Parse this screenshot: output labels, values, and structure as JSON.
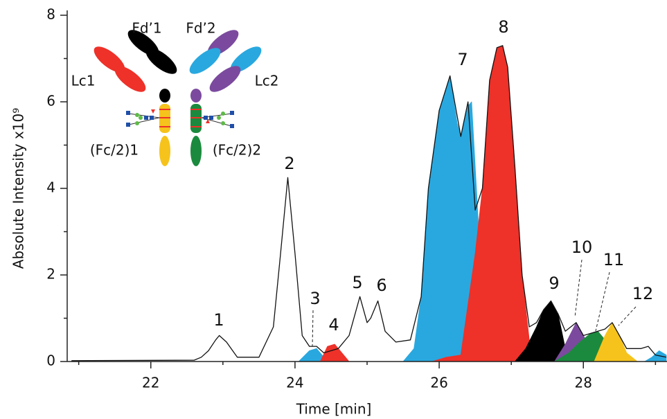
{
  "chart_data": {
    "type": "area",
    "xlabel": "Time [min]",
    "ylabel": "Absolute Intensity x10⁹",
    "xlim": [
      20.84,
      29.16
    ],
    "ylim": [
      0,
      8.1
    ],
    "xticks": [
      22,
      24,
      26,
      28
    ],
    "yticks": [
      0,
      2,
      4,
      6,
      8
    ],
    "x_minor_ticks": [
      21,
      23,
      25,
      27,
      29
    ],
    "y_minor_ticks": [
      1,
      3,
      5,
      7
    ],
    "series": [
      {
        "color": "#29a8df",
        "x": [
          24.05,
          24.2,
          24.3,
          24.45,
          24.5,
          25.5,
          25.65,
          25.75,
          25.85,
          26.0,
          26.1,
          26.15,
          26.25,
          26.3,
          26.4,
          26.45,
          26.55,
          26.6,
          26.65,
          28.85,
          28.95,
          29.05,
          29.15
        ],
        "values": [
          0,
          0.25,
          0.3,
          0,
          null,
          0,
          0.3,
          1.5,
          4.0,
          5.8,
          6.3,
          6.6,
          5.5,
          5.2,
          5.9,
          6.0,
          3.0,
          0,
          null,
          0,
          0.1,
          0.25,
          0.15
        ]
      },
      {
        "color": "#ee3129",
        "x": [
          24.35,
          24.45,
          24.55,
          24.65,
          24.75,
          24.8,
          25.9,
          26.1,
          26.3,
          26.5,
          26.6,
          26.7,
          26.8,
          26.88,
          26.95,
          27.05,
          27.15,
          27.25,
          27.35
        ],
        "values": [
          0,
          0.35,
          0.4,
          0.2,
          0,
          null,
          0,
          0.1,
          0.15,
          2.5,
          4.0,
          6.5,
          7.25,
          7.3,
          6.8,
          4.5,
          2.0,
          0.5,
          0
        ]
      },
      {
        "color": "#000000",
        "x": [
          27.05,
          27.2,
          27.35,
          27.45,
          27.55,
          27.65,
          27.75,
          27.85
        ],
        "values": [
          0,
          0.3,
          0.8,
          1.2,
          1.4,
          1.1,
          0.3,
          0
        ]
      },
      {
        "color": "#7b4a9e",
        "x": [
          27.6,
          27.75,
          27.9,
          28.0,
          28.1,
          28.2
        ],
        "values": [
          0,
          0.4,
          0.9,
          0.6,
          0.3,
          0
        ]
      },
      {
        "color": "#1b8a3e",
        "x": [
          27.6,
          27.8,
          27.95,
          28.1,
          28.2,
          28.3,
          28.45,
          28.6
        ],
        "values": [
          0,
          0.2,
          0.45,
          0.65,
          0.7,
          0.5,
          0.2,
          0
        ]
      },
      {
        "color": "#f6c31c",
        "x": [
          28.15,
          28.3,
          28.4,
          28.5,
          28.6,
          28.75
        ],
        "values": [
          0,
          0.6,
          0.9,
          0.6,
          0.2,
          0
        ]
      },
      {
        "color": "#111111",
        "style": "line",
        "x": [
          20.9,
          22.6,
          22.7,
          22.8,
          22.9,
          22.95,
          23.05,
          23.2,
          23.5,
          23.7,
          23.8,
          23.9,
          24.0,
          24.1,
          24.2,
          24.3,
          24.4,
          24.6,
          24.75,
          24.9,
          25.0,
          25.05,
          25.15,
          25.25,
          25.4,
          25.6,
          25.75,
          25.85,
          26.0,
          26.15,
          26.3,
          26.4,
          26.5,
          26.6,
          26.7,
          26.8,
          26.88,
          26.95,
          27.05,
          27.15,
          27.25,
          27.35,
          27.45,
          27.55,
          27.65,
          27.75,
          27.9,
          28.0,
          28.1,
          28.2,
          28.3,
          28.4,
          28.5,
          28.6,
          28.8,
          28.9,
          29.0,
          29.15
        ],
        "values": [
          0.02,
          0.03,
          0.1,
          0.25,
          0.5,
          0.6,
          0.45,
          0.1,
          0.1,
          0.8,
          2.5,
          4.25,
          2.5,
          0.6,
          0.35,
          0.35,
          0.2,
          0.3,
          0.6,
          1.5,
          0.9,
          1.0,
          1.4,
          0.7,
          0.45,
          0.5,
          1.5,
          4.0,
          5.8,
          6.6,
          5.2,
          6.0,
          3.5,
          4.0,
          6.5,
          7.25,
          7.3,
          6.8,
          4.5,
          2.0,
          0.8,
          0.9,
          1.2,
          1.4,
          1.1,
          0.7,
          0.9,
          0.6,
          0.65,
          0.7,
          0.75,
          0.9,
          0.6,
          0.3,
          0.3,
          0.35,
          0.15,
          0.1
        ]
      }
    ],
    "annotations": [
      "1",
      "2",
      "3",
      "4",
      "5",
      "6",
      "7",
      "8",
      "9",
      "10",
      "11",
      "12"
    ],
    "diagram_labels": [
      "Fd’1",
      "Fd’2",
      "Lc1",
      "Lc2",
      "(Fc/2)1",
      "(Fc/2)2"
    ]
  }
}
